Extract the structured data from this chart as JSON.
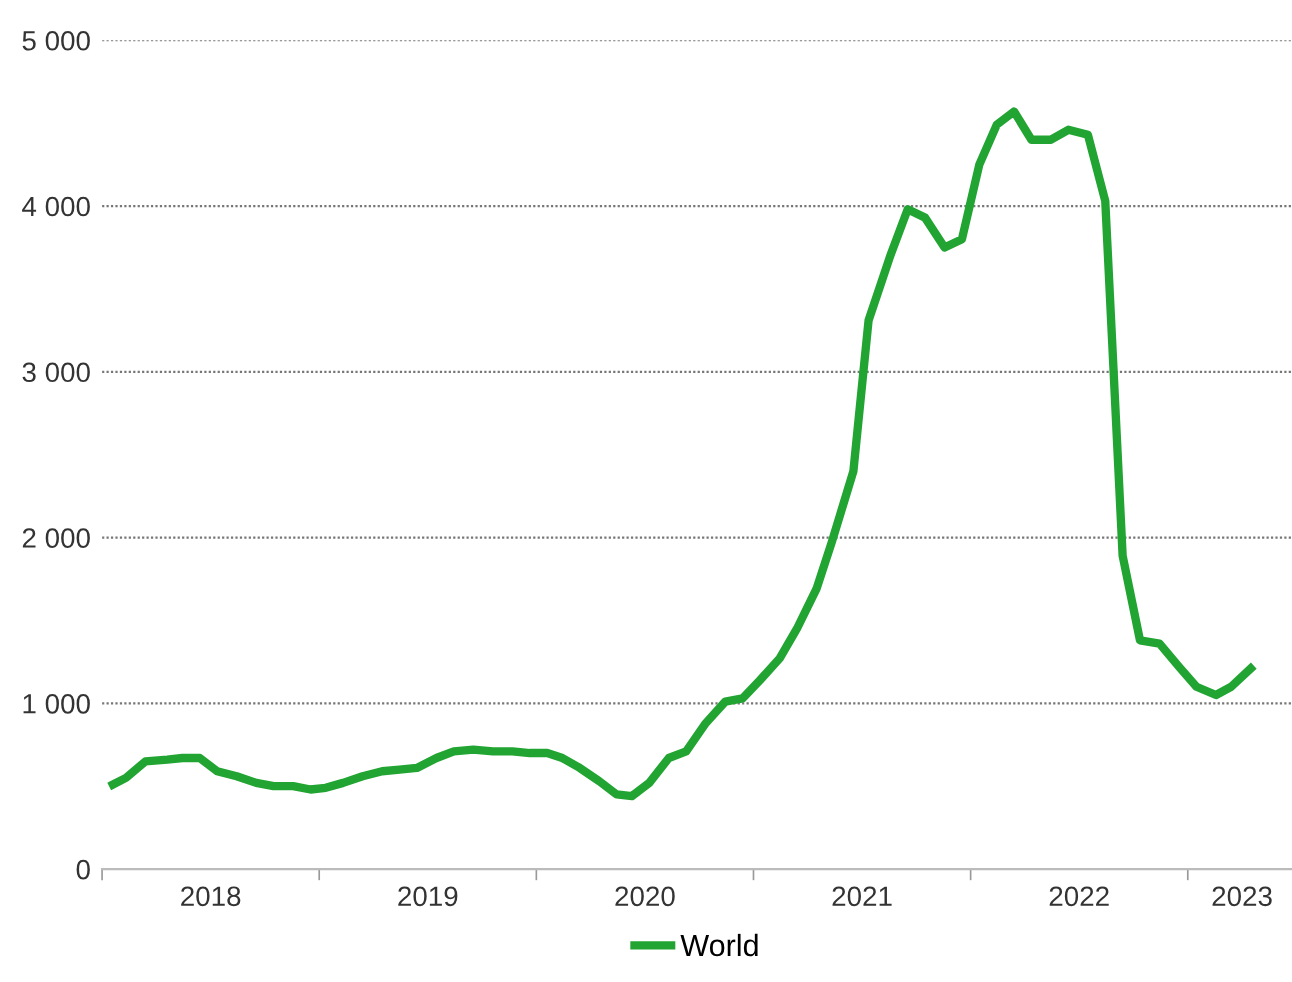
{
  "chart_data": {
    "type": "line",
    "legend": "bottom",
    "grid": "y",
    "marker": "none",
    "line_style": "solid",
    "x": [
      2018.05,
      2018.11,
      2018.2,
      2018.3,
      2018.37,
      2018.45,
      2018.53,
      2018.62,
      2018.71,
      2018.79,
      2018.88,
      2018.96,
      2019.03,
      2019.11,
      2019.2,
      2019.29,
      2019.37,
      2019.45,
      2019.54,
      2019.62,
      2019.71,
      2019.8,
      2019.89,
      2019.97,
      2020.05,
      2020.12,
      2020.2,
      2020.29,
      2020.37,
      2020.44,
      2020.52,
      2020.61,
      2020.69,
      2020.78,
      2020.87,
      2020.95,
      2021.03,
      2021.12,
      2021.2,
      2021.29,
      2021.36,
      2021.46,
      2021.53,
      2021.63,
      2021.71,
      2021.79,
      2021.88,
      2021.96,
      2022.04,
      2022.12,
      2022.2,
      2022.28,
      2022.37,
      2022.45,
      2022.54,
      2022.62,
      2022.7,
      2022.78,
      2022.87,
      2022.96,
      2023.04,
      2023.13,
      2023.2,
      2023.29
    ],
    "series": [
      {
        "name": "World",
        "color": "#22a432",
        "values": [
          510,
          550,
          650,
          660,
          670,
          670,
          590,
          560,
          520,
          500,
          500,
          480,
          490,
          520,
          560,
          590,
          600,
          610,
          670,
          710,
          720,
          710,
          710,
          700,
          700,
          670,
          610,
          530,
          450,
          440,
          520,
          670,
          710,
          880,
          1010,
          1030,
          1140,
          1270,
          1450,
          1690,
          1970,
          2400,
          3310,
          3700,
          3980,
          3930,
          3750,
          3800,
          4250,
          4490,
          4570,
          4400,
          4400,
          4460,
          4430,
          4030,
          1890,
          1380,
          1360,
          1220,
          1100,
          1050,
          1100,
          1210
        ]
      }
    ],
    "xlim": [
      2018,
      2023.48
    ],
    "xticks": [
      {
        "value": 2018,
        "label": null
      },
      {
        "value": 2018.5,
        "label": "2018"
      },
      {
        "value": 2019,
        "label": null
      },
      {
        "value": 2019.5,
        "label": "2019"
      },
      {
        "value": 2020,
        "label": null
      },
      {
        "value": 2020.5,
        "label": "2020"
      },
      {
        "value": 2021,
        "label": null
      },
      {
        "value": 2021.5,
        "label": "2021"
      },
      {
        "value": 2022,
        "label": null
      },
      {
        "value": 2022.5,
        "label": "2022"
      },
      {
        "value": 2023,
        "label": null
      },
      {
        "value": 2023.25,
        "label": "2023"
      }
    ],
    "ylim": [
      0,
      5000
    ],
    "yticks": [
      0,
      {
        "value": 1000,
        "label": "1 000"
      },
      {
        "value": 2000,
        "label": "2 000"
      },
      {
        "value": 3000,
        "label": "3 000"
      },
      {
        "value": 4000,
        "label": "4 000"
      },
      {
        "value": 5000,
        "label": "5 000"
      }
    ]
  }
}
